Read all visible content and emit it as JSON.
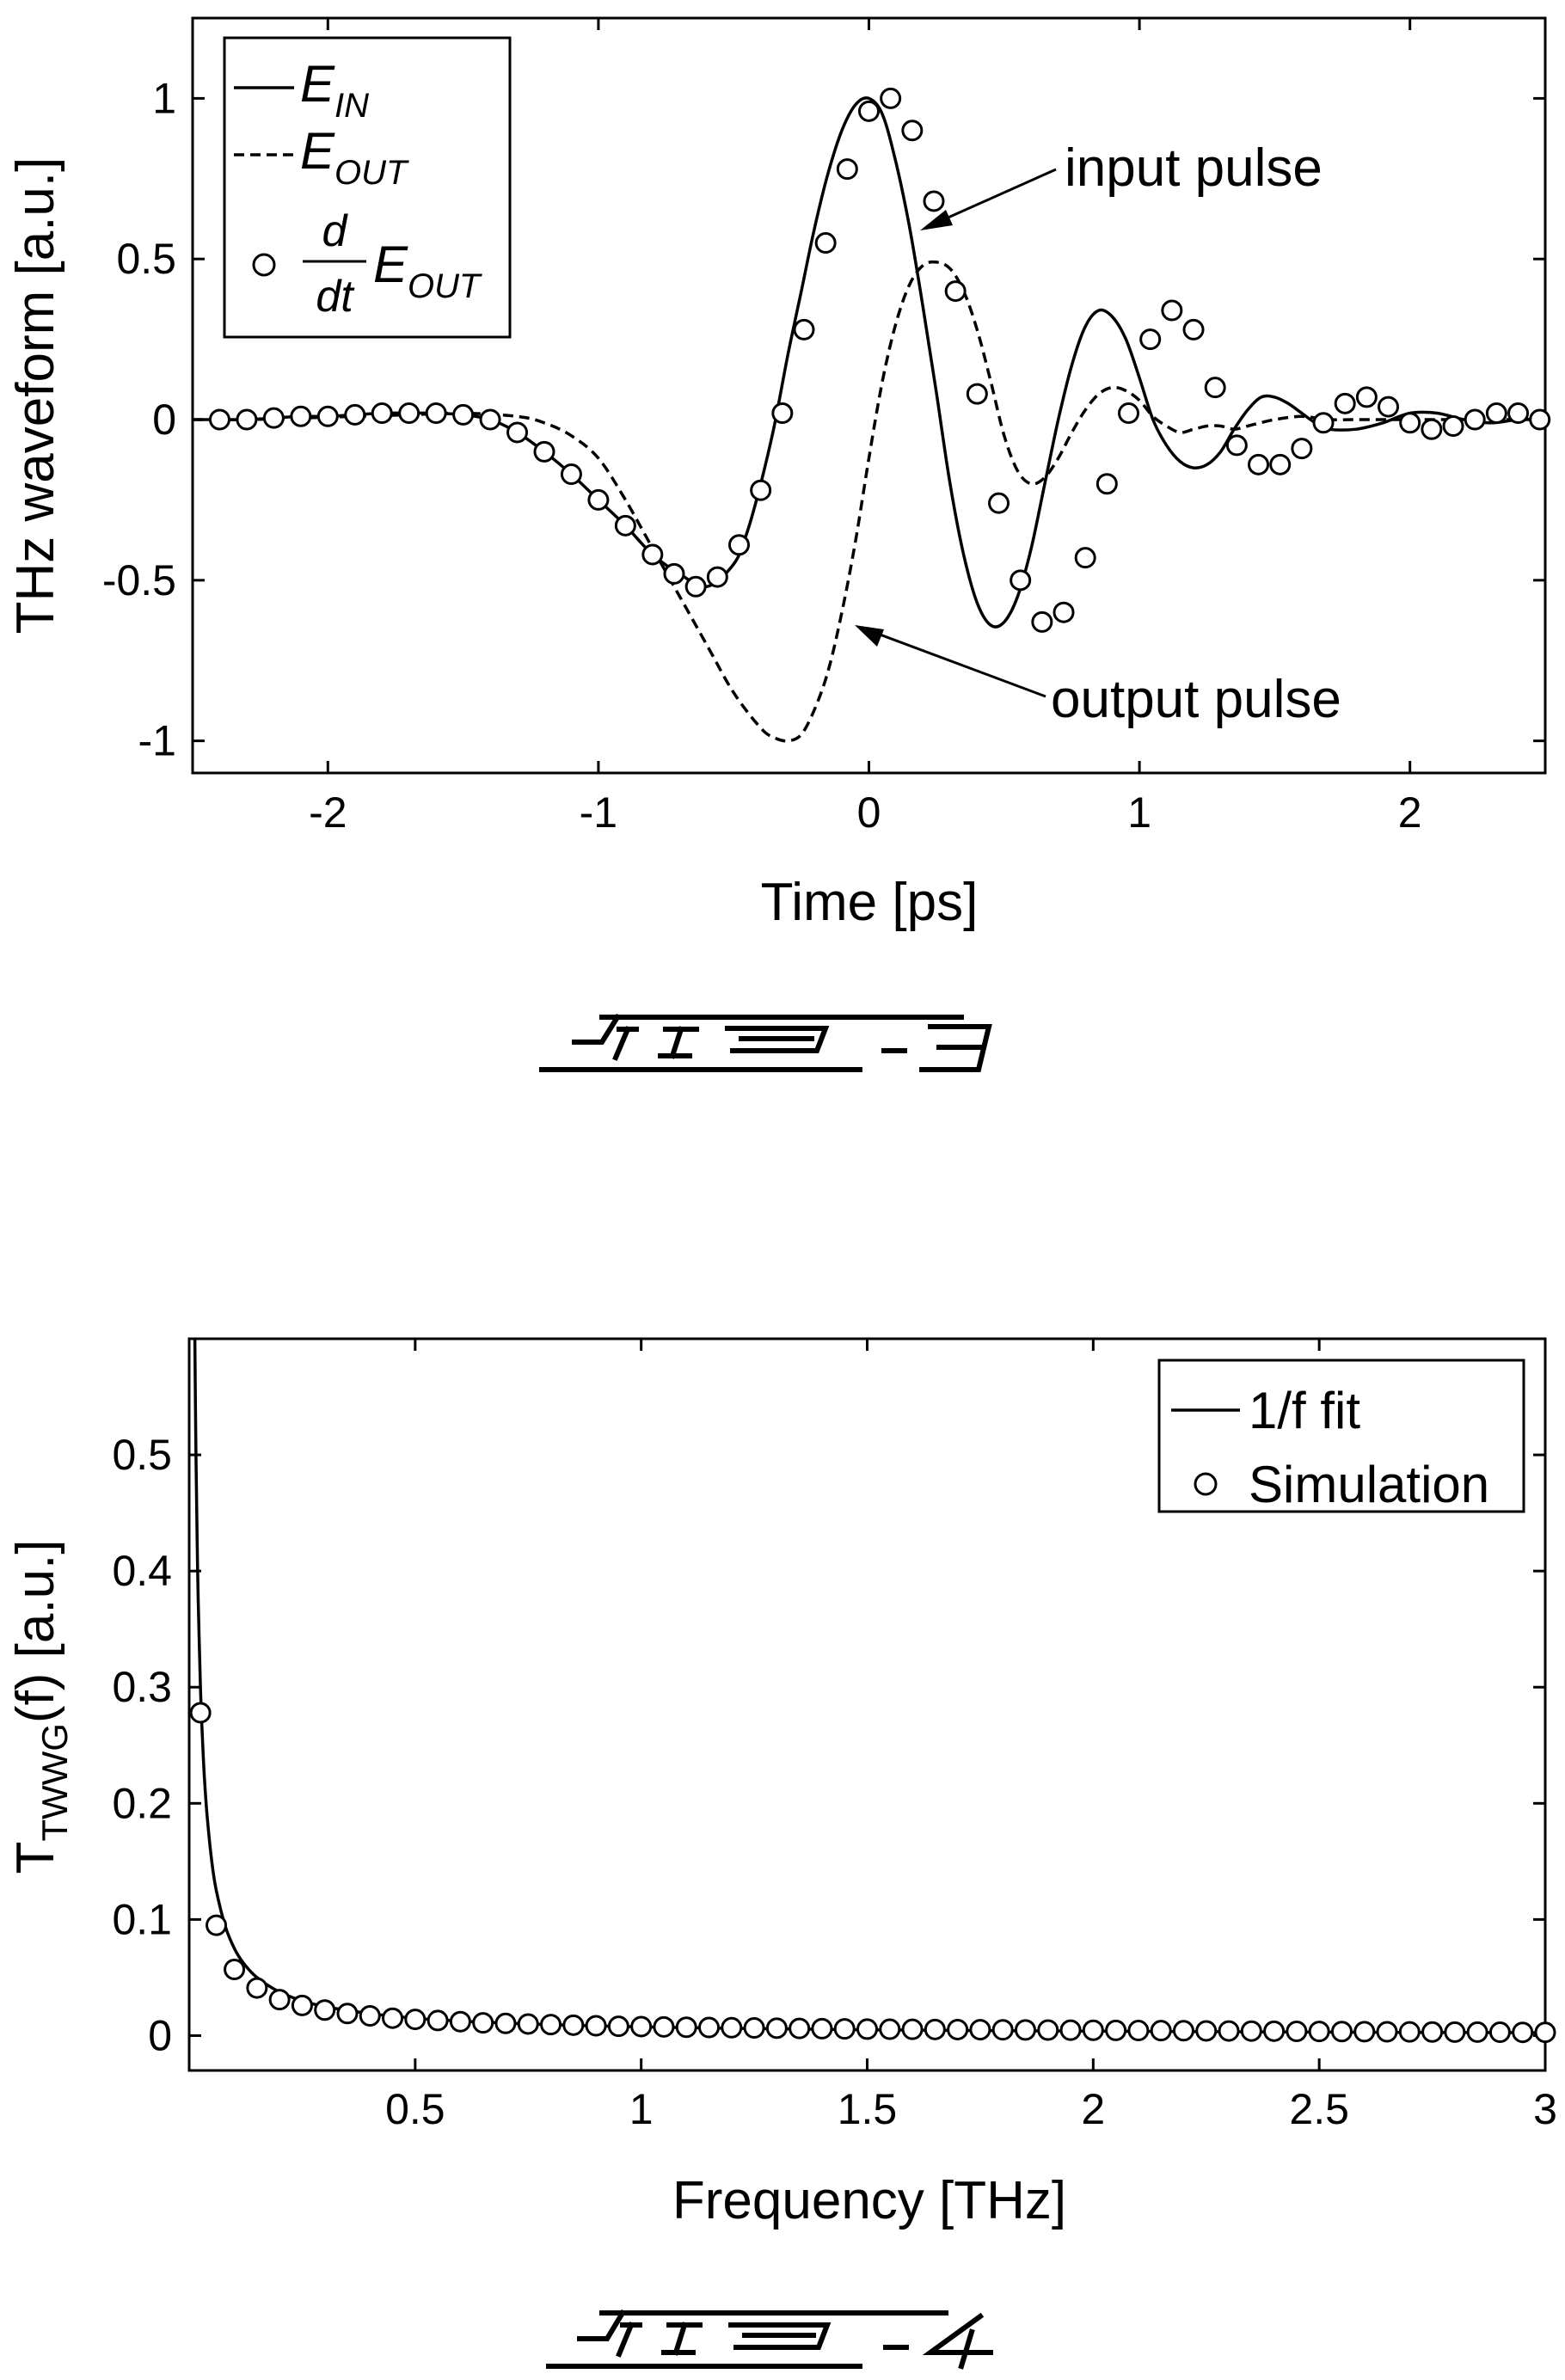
{
  "chart_data": [
    {
      "type": "line",
      "title": "",
      "xlabel": "Time [ps]",
      "ylabel": "THz waveform [a.u.]",
      "xlim": [
        -2.5,
        2.5
      ],
      "ylim": [
        -1.1,
        1.25
      ],
      "xticks": [
        -2,
        -1,
        0,
        1,
        2
      ],
      "yticks": [
        -1,
        -0.5,
        0,
        0.5,
        1
      ],
      "xtick_labels": [
        "-2",
        "-1",
        "0",
        "1",
        "2"
      ],
      "ytick_labels": [
        "-1",
        "-0.5",
        "0",
        "0.5",
        "1"
      ],
      "grid": false,
      "legend_position": "top-left",
      "legend": {
        "e_in": {
          "base": "E",
          "sub": "IN"
        },
        "e_out": {
          "base": "E",
          "sub": "OUT"
        },
        "deriv": {
          "num": "d",
          "den": "dt",
          "base": "E",
          "sub": "OUT"
        }
      },
      "annotations": [
        {
          "text": "input pulse",
          "x": 0.3,
          "y": 0.63
        },
        {
          "text": "output pulse",
          "x": -0.05,
          "y": -0.68
        }
      ],
      "figure_label": "FIG. 3",
      "series": [
        {
          "name": "E_IN",
          "style": "solid",
          "x": [
            -2.5,
            -2.4,
            -2.3,
            -2.2,
            -2.1,
            -2.0,
            -1.9,
            -1.8,
            -1.7,
            -1.6,
            -1.5,
            -1.4,
            -1.3,
            -1.2,
            -1.1,
            -1.0,
            -0.9,
            -0.8,
            -0.7,
            -0.6,
            -0.5,
            -0.45,
            -0.4,
            -0.35,
            -0.3,
            -0.25,
            -0.2,
            -0.15,
            -0.1,
            -0.05,
            0.0,
            0.05,
            0.1,
            0.15,
            0.2,
            0.25,
            0.3,
            0.35,
            0.4,
            0.45,
            0.5,
            0.55,
            0.6,
            0.65,
            0.7,
            0.75,
            0.8,
            0.85,
            0.9,
            0.95,
            1.0,
            1.05,
            1.1,
            1.15,
            1.2,
            1.25,
            1.3,
            1.35,
            1.4,
            1.45,
            1.5,
            1.55,
            1.6,
            1.65,
            1.7,
            1.8,
            1.9,
            2.0,
            2.1,
            2.2,
            2.3,
            2.4,
            2.5
          ],
          "values": [
            0.0,
            0.0,
            0.0,
            0.005,
            0.01,
            0.01,
            0.015,
            0.02,
            0.02,
            0.02,
            0.015,
            0.0,
            -0.04,
            -0.1,
            -0.17,
            -0.25,
            -0.33,
            -0.42,
            -0.48,
            -0.52,
            -0.45,
            -0.35,
            -0.2,
            -0.02,
            0.2,
            0.4,
            0.6,
            0.77,
            0.9,
            0.98,
            1.0,
            0.95,
            0.8,
            0.6,
            0.35,
            0.08,
            -0.2,
            -0.42,
            -0.57,
            -0.64,
            -0.63,
            -0.55,
            -0.4,
            -0.2,
            0.0,
            0.17,
            0.29,
            0.34,
            0.32,
            0.25,
            0.13,
            0.0,
            -0.08,
            -0.13,
            -0.15,
            -0.14,
            -0.1,
            -0.03,
            0.03,
            0.07,
            0.07,
            0.05,
            0.02,
            -0.01,
            -0.03,
            -0.03,
            -0.01,
            0.02,
            0.02,
            0.0,
            -0.01,
            0.0,
            0.0
          ]
        },
        {
          "name": "E_OUT",
          "style": "dashed",
          "x": [
            -2.5,
            -2.3,
            -2.1,
            -1.9,
            -1.7,
            -1.5,
            -1.3,
            -1.2,
            -1.1,
            -1.0,
            -0.9,
            -0.8,
            -0.7,
            -0.6,
            -0.5,
            -0.4,
            -0.35,
            -0.3,
            -0.25,
            -0.2,
            -0.15,
            -0.1,
            -0.05,
            0.0,
            0.05,
            0.1,
            0.15,
            0.2,
            0.25,
            0.3,
            0.35,
            0.4,
            0.45,
            0.5,
            0.55,
            0.6,
            0.65,
            0.7,
            0.75,
            0.8,
            0.85,
            0.9,
            0.95,
            1.0,
            1.05,
            1.1,
            1.15,
            1.2,
            1.25,
            1.3,
            1.35,
            1.4,
            1.5,
            1.6,
            1.7,
            1.8,
            1.9,
            2.0,
            2.2,
            2.5
          ],
          "values": [
            0.0,
            0.0,
            0.005,
            0.01,
            0.015,
            0.02,
            0.01,
            -0.01,
            -0.05,
            -0.12,
            -0.25,
            -0.4,
            -0.55,
            -0.7,
            -0.85,
            -0.96,
            -0.99,
            -1.0,
            -0.98,
            -0.9,
            -0.78,
            -0.6,
            -0.38,
            -0.12,
            0.12,
            0.3,
            0.42,
            0.48,
            0.49,
            0.47,
            0.4,
            0.28,
            0.12,
            -0.05,
            -0.16,
            -0.2,
            -0.18,
            -0.12,
            -0.04,
            0.03,
            0.08,
            0.1,
            0.09,
            0.06,
            0.01,
            -0.02,
            -0.04,
            -0.03,
            -0.02,
            -0.02,
            -0.03,
            -0.02,
            0.0,
            0.01,
            0.0,
            0.0,
            0.0,
            0.0,
            0.0,
            0.0
          ]
        },
        {
          "name": "d/dt E_OUT",
          "style": "circles",
          "x": [
            -2.4,
            -2.3,
            -2.2,
            -2.1,
            -2.0,
            -1.9,
            -1.8,
            -1.7,
            -1.6,
            -1.5,
            -1.4,
            -1.3,
            -1.2,
            -1.1,
            -1.0,
            -0.9,
            -0.8,
            -0.72,
            -0.64,
            -0.56,
            -0.48,
            -0.4,
            -0.32,
            -0.24,
            -0.16,
            -0.08,
            0.0,
            0.08,
            0.16,
            0.24,
            0.32,
            0.4,
            0.48,
            0.56,
            0.64,
            0.72,
            0.8,
            0.88,
            0.96,
            1.04,
            1.12,
            1.2,
            1.28,
            1.36,
            1.44,
            1.52,
            1.6,
            1.68,
            1.76,
            1.84,
            1.92,
            2.0,
            2.08,
            2.16,
            2.24,
            2.32,
            2.4,
            2.48
          ],
          "values": [
            0.0,
            0.0,
            0.005,
            0.01,
            0.01,
            0.015,
            0.02,
            0.02,
            0.02,
            0.015,
            0.0,
            -0.04,
            -0.1,
            -0.17,
            -0.25,
            -0.33,
            -0.42,
            -0.48,
            -0.52,
            -0.49,
            -0.39,
            -0.22,
            0.02,
            0.28,
            0.55,
            0.78,
            0.96,
            1.0,
            0.9,
            0.68,
            0.4,
            0.08,
            -0.26,
            -0.5,
            -0.63,
            -0.6,
            -0.43,
            -0.2,
            0.02,
            0.25,
            0.34,
            0.28,
            0.1,
            -0.08,
            -0.14,
            -0.14,
            -0.09,
            -0.01,
            0.05,
            0.07,
            0.04,
            -0.01,
            -0.03,
            -0.02,
            0.0,
            0.02,
            0.02,
            0.0
          ]
        }
      ]
    },
    {
      "type": "line",
      "title": "",
      "xlabel": "Frequency [THz]",
      "ylabel": {
        "base": "T",
        "sub": "TWWG",
        "rest": "(f) [a.u.]"
      },
      "xlim": [
        0.0,
        3.0
      ],
      "ylim": [
        -0.03,
        0.6
      ],
      "xticks": [
        0.5,
        1,
        1.5,
        2,
        2.5,
        3
      ],
      "yticks": [
        0,
        0.1,
        0.2,
        0.3,
        0.4,
        0.5
      ],
      "xtick_labels": [
        "0.5",
        "1",
        "1.5",
        "2",
        "2.5",
        "3"
      ],
      "ytick_labels": [
        "0",
        "0.1",
        "0.2",
        "0.3",
        "0.4",
        "0.5"
      ],
      "grid": false,
      "legend_position": "top-right",
      "figure_label": "FIG. 4",
      "series": [
        {
          "name": "1/f fit",
          "style": "solid",
          "x": [
            0.0125,
            0.015,
            0.0175,
            0.02,
            0.025,
            0.03,
            0.035,
            0.04,
            0.05,
            0.06,
            0.08,
            0.1,
            0.12,
            0.15,
            0.2,
            0.25,
            0.3,
            0.4,
            0.5,
            0.6,
            0.8,
            1.0,
            1.2,
            1.5,
            1.8,
            2.0,
            2.5,
            3.0
          ],
          "values": [
            0.6,
            0.5,
            0.43,
            0.375,
            0.3,
            0.25,
            0.214,
            0.188,
            0.15,
            0.125,
            0.094,
            0.075,
            0.0625,
            0.05,
            0.0375,
            0.03,
            0.025,
            0.019,
            0.015,
            0.0125,
            0.0094,
            0.0075,
            0.0063,
            0.005,
            0.0042,
            0.0038,
            0.003,
            0.0025
          ]
        },
        {
          "name": "Simulation",
          "style": "circles",
          "x": [
            0.025,
            0.06,
            0.1,
            0.15,
            0.2,
            0.25,
            0.3,
            0.35,
            0.4,
            0.45,
            0.5,
            0.55,
            0.6,
            0.65,
            0.7,
            0.75,
            0.8,
            0.85,
            0.9,
            0.95,
            1.0,
            1.05,
            1.1,
            1.15,
            1.2,
            1.25,
            1.3,
            1.35,
            1.4,
            1.45,
            1.5,
            1.55,
            1.6,
            1.65,
            1.7,
            1.75,
            1.8,
            1.85,
            1.9,
            1.95,
            2.0,
            2.05,
            2.1,
            2.15,
            2.2,
            2.25,
            2.3,
            2.35,
            2.4,
            2.45,
            2.5,
            2.55,
            2.6,
            2.65,
            2.7,
            2.75,
            2.8,
            2.85,
            2.9,
            2.95,
            3.0
          ],
          "values": [
            0.278,
            0.095,
            0.057,
            0.041,
            0.031,
            0.026,
            0.022,
            0.019,
            0.017,
            0.015,
            0.014,
            0.013,
            0.012,
            0.011,
            0.0105,
            0.01,
            0.0095,
            0.009,
            0.0085,
            0.008,
            0.0078,
            0.0075,
            0.0072,
            0.007,
            0.0068,
            0.0066,
            0.0064,
            0.0062,
            0.006,
            0.0058,
            0.0056,
            0.0055,
            0.0054,
            0.0053,
            0.0052,
            0.0051,
            0.005,
            0.0049,
            0.0048,
            0.0047,
            0.0046,
            0.0045,
            0.0044,
            0.0043,
            0.0042,
            0.0041,
            0.004,
            0.0039,
            0.0038,
            0.0037,
            0.0036,
            0.0035,
            0.0034,
            0.0033,
            0.0032,
            0.0031,
            0.003,
            0.003,
            0.0029,
            0.0028,
            0.0028
          ]
        }
      ]
    }
  ]
}
